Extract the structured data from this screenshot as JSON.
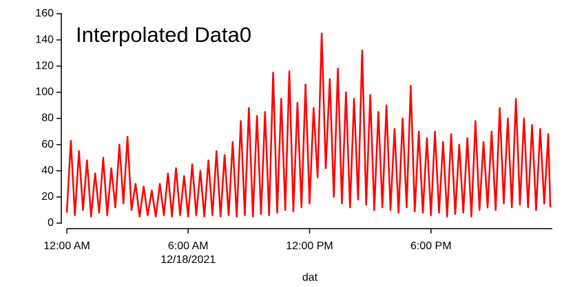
{
  "chart_data": {
    "type": "line",
    "title": "Interpolated Data0",
    "x_label": "dat",
    "date_label": "12/18/2021",
    "x": [
      0,
      0.2,
      0.4,
      0.6,
      0.8,
      1.0,
      1.2,
      1.4,
      1.6,
      1.8,
      2.0,
      2.2,
      2.4,
      2.6,
      2.8,
      3.0,
      3.2,
      3.4,
      3.6,
      3.8,
      4.0,
      4.2,
      4.4,
      4.6,
      4.8,
      5.0,
      5.2,
      5.4,
      5.6,
      5.8,
      6.0,
      6.2,
      6.4,
      6.6,
      6.8,
      7.0,
      7.2,
      7.4,
      7.6,
      7.8,
      8.0,
      8.2,
      8.4,
      8.6,
      8.8,
      9.0,
      9.2,
      9.4,
      9.6,
      9.8,
      10.0,
      10.2,
      10.4,
      10.6,
      10.8,
      11.0,
      11.2,
      11.4,
      11.6,
      11.8,
      12.0,
      12.2,
      12.4,
      12.6,
      12.8,
      13.0,
      13.2,
      13.4,
      13.6,
      13.8,
      14.0,
      14.2,
      14.4,
      14.6,
      14.8,
      15.0,
      15.2,
      15.4,
      15.6,
      15.8,
      16.0,
      16.2,
      16.4,
      16.6,
      16.8,
      17.0,
      17.2,
      17.4,
      17.6,
      17.8,
      18.0,
      18.2,
      18.4,
      18.6,
      18.8,
      19.0,
      19.2,
      19.4,
      19.6,
      19.8,
      20.0,
      20.2,
      20.4,
      20.6,
      20.8,
      21.0,
      21.2,
      21.4,
      21.6,
      21.8,
      22.0,
      22.2,
      22.4,
      22.6,
      22.8,
      23.0,
      23.2,
      23.4,
      23.6,
      23.8,
      23.9
    ],
    "series": [
      {
        "name": "Interpolated Data0",
        "color": "#ff0000",
        "values": [
          8,
          63,
          6,
          55,
          10,
          48,
          5,
          38,
          8,
          50,
          6,
          42,
          12,
          60,
          15,
          66,
          10,
          30,
          5,
          28,
          6,
          25,
          5,
          30,
          6,
          38,
          5,
          42,
          6,
          36,
          5,
          45,
          6,
          40,
          5,
          48,
          6,
          55,
          5,
          52,
          6,
          62,
          5,
          78,
          6,
          88,
          5,
          82,
          7,
          85,
          6,
          115,
          8,
          95,
          10,
          116,
          9,
          92,
          12,
          106,
          15,
          88,
          35,
          145,
          42,
          110,
          20,
          118,
          15,
          100,
          12,
          95,
          18,
          132,
          14,
          98,
          10,
          85,
          12,
          90,
          10,
          72,
          8,
          80,
          12,
          105,
          9,
          70,
          8,
          65,
          6,
          70,
          8,
          62,
          5,
          68,
          7,
          60,
          8,
          65,
          5,
          78,
          10,
          62,
          12,
          70,
          10,
          88,
          15,
          80,
          12,
          95,
          14,
          80,
          12,
          75,
          10,
          72,
          15,
          68,
          12
        ]
      }
    ],
    "xlim": [
      0,
      24
    ],
    "xticks": [
      {
        "value": 0,
        "label": "12:00 AM"
      },
      {
        "value": 6,
        "label": "6:00 AM"
      },
      {
        "value": 12,
        "label": "12:00 PM"
      },
      {
        "value": 18,
        "label": "6:00 PM"
      }
    ],
    "ylim": [
      0,
      160
    ],
    "yticks": [
      0,
      20,
      40,
      60,
      80,
      100,
      120,
      140,
      160
    ]
  }
}
